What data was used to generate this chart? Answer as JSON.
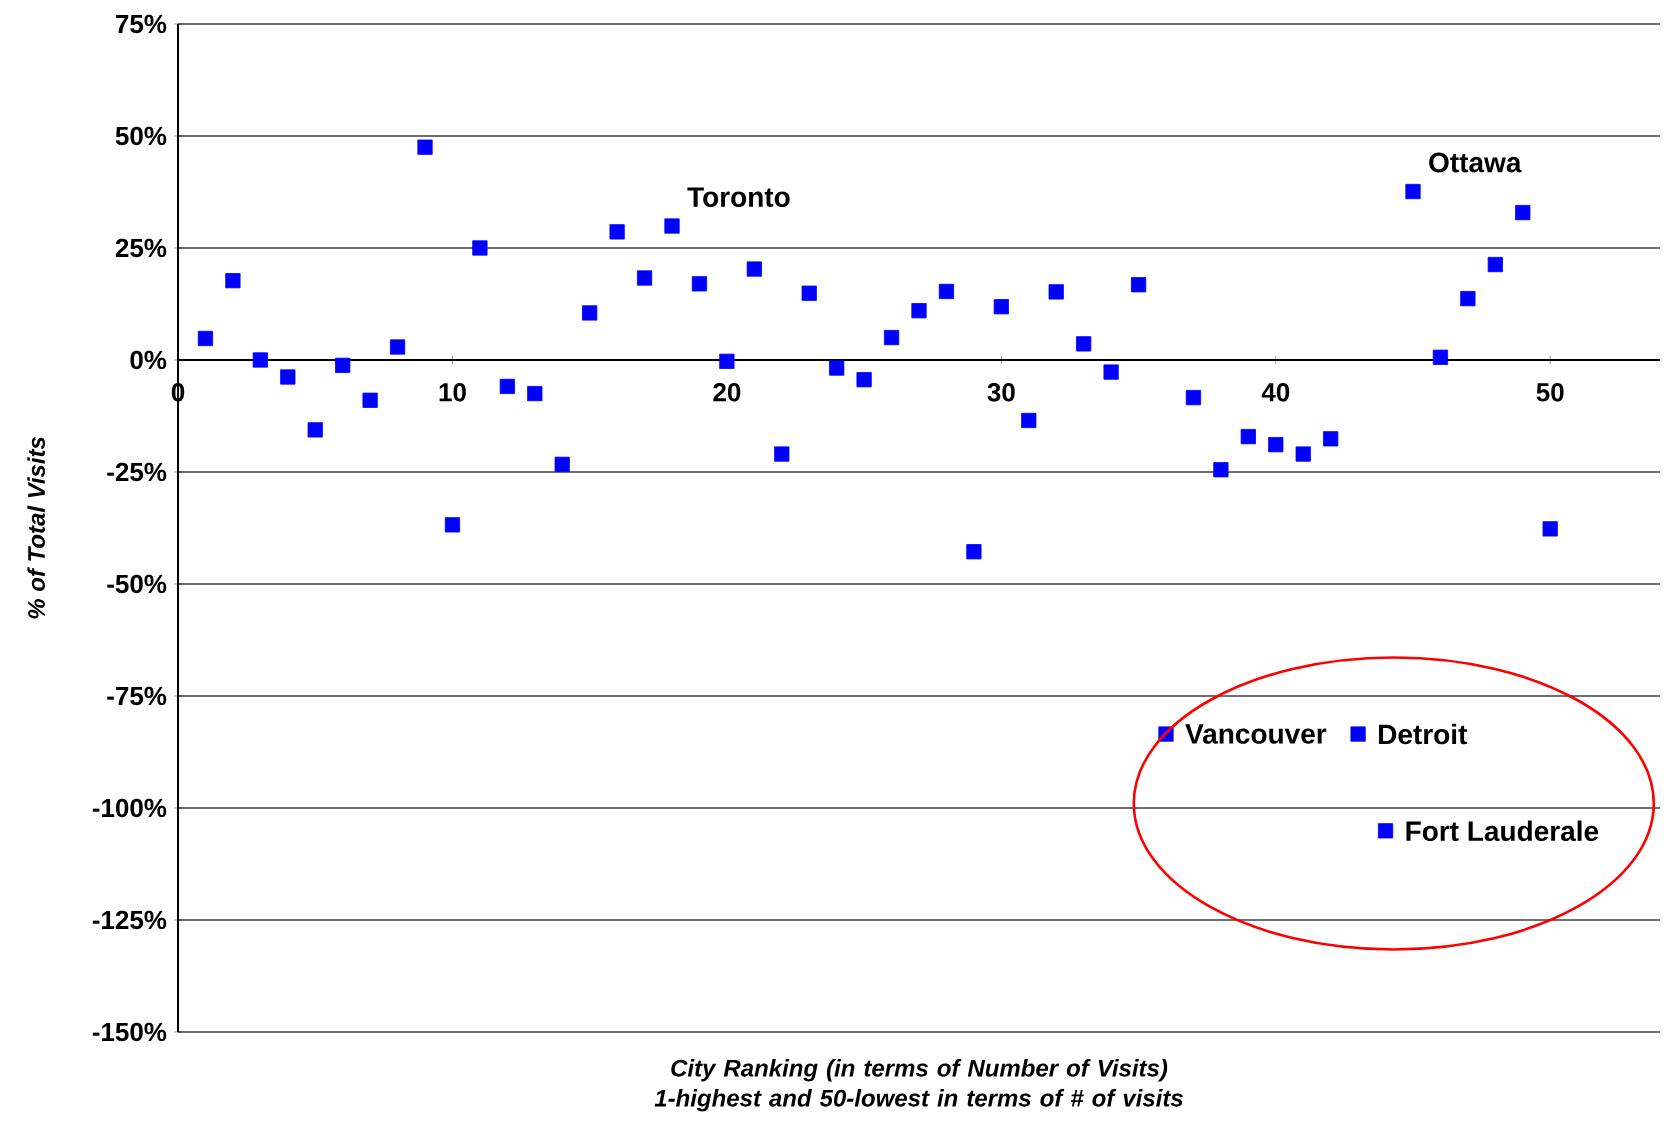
{
  "chart_data": {
    "type": "scatter",
    "xlabel": "City Ranking (in terms of Number of Visits)\n1-highest and 50-lowest in terms of # of visits",
    "ylabel": "% of Total Visits",
    "x": [
      1,
      2,
      3,
      4,
      5,
      6,
      7,
      8,
      9,
      10,
      11,
      12,
      13,
      14,
      15,
      16,
      17,
      18,
      19,
      20,
      21,
      22,
      23,
      24,
      25,
      26,
      27,
      28,
      29,
      30,
      31,
      32,
      33,
      34,
      35,
      36,
      37,
      38,
      39,
      40,
      41,
      42,
      43,
      44,
      45,
      46,
      47,
      48,
      49,
      50
    ],
    "series": [
      {
        "color": "#0000ff",
        "values": [
          4.8,
          17.7,
          0,
          -3.8,
          -15.6,
          -1.2,
          -9.0,
          2.9,
          47.5,
          -36.8,
          25.0,
          -5.9,
          -7.5,
          -23.3,
          10.5,
          28.6,
          18.3,
          29.9,
          17.0,
          -0.3,
          20.3,
          -21.0,
          14.9,
          -1.8,
          -4.4,
          5.0,
          11.0,
          15.3,
          -42.8,
          11.9,
          -13.5,
          15.2,
          3.6,
          -2.7,
          16.8,
          -83.5,
          -8.4,
          -24.5,
          -17.1,
          -18.9,
          -21.0,
          -17.6,
          -83.5,
          -105.1,
          37.6,
          0.6,
          13.7,
          21.3,
          32.9,
          -37.7
        ]
      }
    ],
    "marker": "square",
    "xlim": [
      0,
      54
    ],
    "xticks": [
      0,
      10,
      20,
      30,
      40,
      50
    ],
    "ylim": [
      -150,
      75
    ],
    "yticks": [
      {
        "value": -150,
        "label": "-150%"
      },
      {
        "value": -125,
        "label": "-125%"
      },
      {
        "value": -100,
        "label": "-100%"
      },
      {
        "value": -75,
        "label": "-75%"
      },
      {
        "value": -50,
        "label": "-50%"
      },
      {
        "value": -25,
        "label": "-25%"
      },
      {
        "value": 0,
        "label": "0%"
      },
      {
        "value": 25,
        "label": "25%"
      },
      {
        "value": 50,
        "label": "50%"
      },
      {
        "value": 75,
        "label": "75%"
      }
    ],
    "grid": "y",
    "annotations": [
      {
        "text": "Toronto",
        "x": 18,
        "y": 29.9
      },
      {
        "text": "Ottawa",
        "x": 45,
        "y": 37.6
      },
      {
        "text": "Vancouver",
        "x": 36,
        "y": -83.5
      },
      {
        "text": "Detroit",
        "x": 43,
        "y": -83.5
      },
      {
        "text": "Fort Lauderale",
        "x": 44,
        "y": -105.1
      }
    ]
  }
}
